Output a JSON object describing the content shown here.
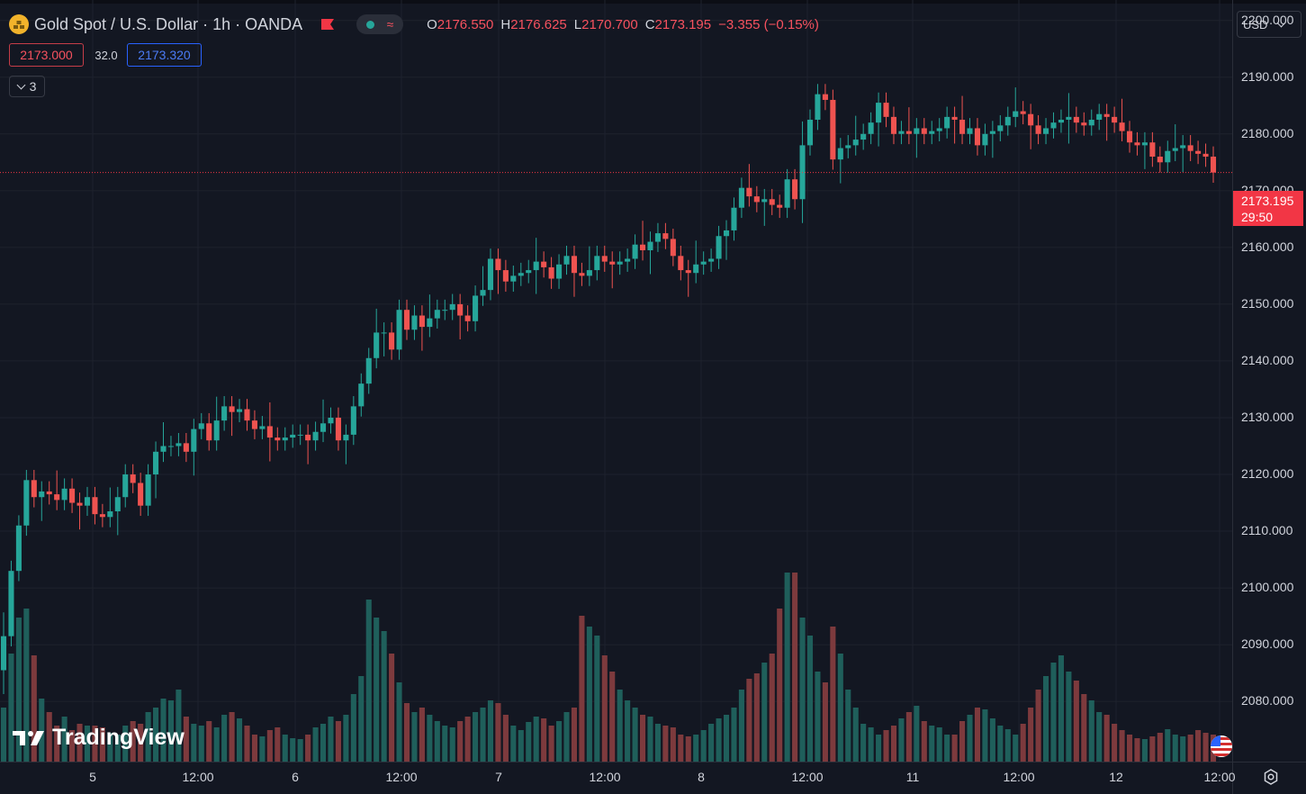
{
  "symbol": {
    "title": "Gold Spot / U.S. Dollar · 1h · OANDA",
    "icon": "gold-bars-icon"
  },
  "ohlc": {
    "open_label": "O",
    "open": "2176.550",
    "high_label": "H",
    "high": "2176.625",
    "low_label": "L",
    "low": "2170.700",
    "close_label": "C",
    "close": "2173.195",
    "change": "−3.355 (−0.15%)"
  },
  "trade": {
    "sell_price": "2173.000",
    "spread": "32.0",
    "buy_price": "2173.320"
  },
  "indicators_toggle": {
    "count": "3"
  },
  "currency": {
    "label": "USD"
  },
  "last_price": {
    "value": "2173.195",
    "countdown": "29:50"
  },
  "brand": {
    "name": "TradingView"
  },
  "colors": {
    "up": "#26a69a",
    "down": "#ef5350",
    "background": "#131722",
    "grid": "#1e222d"
  },
  "chart_data": {
    "type": "candlestick",
    "title": "Gold Spot / U.S. Dollar · 1h · OANDA",
    "y_ticks": [
      "2200.000",
      "2190.000",
      "2180.000",
      "2170.000",
      "2160.000",
      "2150.000",
      "2140.000",
      "2130.000",
      "2120.000",
      "2110.000",
      "2100.000",
      "2090.000",
      "2080.000"
    ],
    "x_ticks": [
      "5",
      "12:00",
      "6",
      "12:00",
      "7",
      "12:00",
      "8",
      "12:00",
      "11",
      "12:00",
      "12",
      "12:00"
    ],
    "ylim": [
      2069.4,
      2203.6
    ],
    "grid": true,
    "candle_closes": [
      2091.5,
      2103.0,
      2111.0,
      2119.0,
      2116.0,
      2117.0,
      2116.5,
      2115.5,
      2117.5,
      2115.0,
      2114.5,
      2116.0,
      2113.0,
      2112.5,
      2113.5,
      2116.0,
      2120.0,
      2118.5,
      2114.5,
      2120.0,
      2124.0,
      2125.0,
      2125.0,
      2125.5,
      2124.0,
      2128.0,
      2129.0,
      2126.0,
      2129.5,
      2132.0,
      2131.0,
      2131.5,
      2129.5,
      2128.0,
      2128.5,
      2126.5,
      2126.0,
      2126.5,
      2127.0,
      2127.0,
      2126.0,
      2127.5,
      2129.0,
      2130.0,
      2126.0,
      2127.0,
      2132.0,
      2136.0,
      2140.5,
      2145.0,
      2145.0,
      2142.0,
      2149.0,
      2145.5,
      2148.0,
      2146.0,
      2147.5,
      2149.0,
      2149.0,
      2150.0,
      2148.0,
      2147.0,
      2151.5,
      2152.5,
      2158.0,
      2156.0,
      2154.0,
      2155.0,
      2155.5,
      2156.0,
      2157.5,
      2156.5,
      2154.5,
      2157.0,
      2158.5,
      2155.5,
      2155.0,
      2156.0,
      2158.5,
      2157.5,
      2157.0,
      2157.5,
      2158.0,
      2160.5,
      2159.5,
      2161.0,
      2162.5,
      2161.5,
      2158.5,
      2156.0,
      2155.5,
      2157.0,
      2157.5,
      2158.0,
      2162.0,
      2163.0,
      2167.0,
      2170.5,
      2169.0,
      2168.0,
      2168.5,
      2167.5,
      2167.0,
      2172.0,
      2168.5,
      2178.0,
      2182.5,
      2187.0,
      2186.0,
      2175.5,
      2177.5,
      2178.0,
      2179.0,
      2180.0,
      2182.0,
      2185.5,
      2183.0,
      2180.0,
      2180.5,
      2180.0,
      2181.0,
      2180.0,
      2180.5,
      2181.0,
      2183.0,
      2182.5,
      2180.0,
      2181.0,
      2178.0,
      2180.0,
      2180.5,
      2181.5,
      2183.0,
      2184.0,
      2183.5,
      2181.5,
      2180.0,
      2181.0,
      2182.0,
      2182.5,
      2183.0,
      2182.0,
      2181.5,
      2182.5,
      2183.5,
      2183.0,
      2182.0,
      2180.5,
      2178.5,
      2178.0,
      2178.5,
      2176.0,
      2175.0,
      2177.0,
      2177.5,
      2178.0,
      2177.0,
      2176.5,
      2176.0,
      2173.2
    ],
    "volume_series": "relative hourly volume bars (green up, red down)"
  }
}
